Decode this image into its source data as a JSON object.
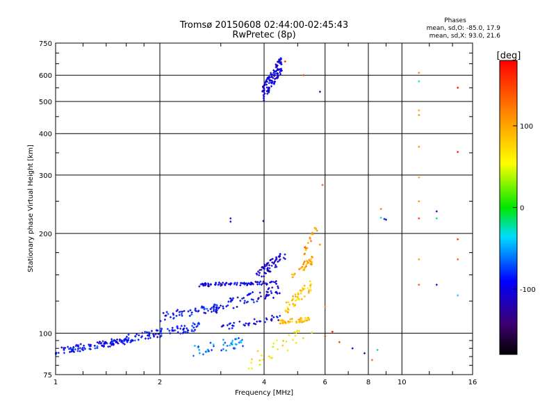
{
  "chart_data": {
    "type": "scatter",
    "title": "Tromsø 20150608 02:44:00-02:45:43",
    "subtitle": "RwPretec (8p)",
    "xlabel": "Frequency [MHz]",
    "ylabel": "Stationary phase Virtual Height [km]",
    "x_scale": "log",
    "y_scale": "log",
    "xlim": [
      1,
      16
    ],
    "ylim": [
      75,
      750
    ],
    "x_ticks": [
      1,
      2,
      4,
      6,
      8,
      10,
      16
    ],
    "x_tick_labels": [
      "1",
      "2",
      "4",
      "6",
      "8",
      "10",
      "16"
    ],
    "y_ticks": [
      75,
      100,
      200,
      300,
      400,
      500,
      600,
      750
    ],
    "y_tick_labels": [
      "75",
      "100",
      "200",
      "300",
      "400",
      "500",
      "600",
      "750"
    ],
    "x_grid": [
      2,
      4,
      6,
      8,
      10
    ],
    "y_grid": [
      100,
      200,
      300,
      400,
      500,
      600
    ],
    "grid": true,
    "stats_title": "Phases",
    "stats_lines": [
      "mean, sd,O: -85.0, 17.9",
      "mean, sd,X:  93.0, 21.6"
    ],
    "colorbar": {
      "label": "[deg]",
      "range": [
        -180,
        180
      ],
      "ticks": [
        100,
        0,
        -100
      ],
      "tick_labels": [
        "100",
        "0",
        "-100"
      ],
      "placement": "right"
    },
    "traces": [
      {
        "x0": 1.0,
        "x1": 1.6,
        "y0": 88,
        "y1": 95,
        "phase": -95,
        "n": 110,
        "spread": 0.025
      },
      {
        "x0": 1.6,
        "x1": 2.6,
        "y0": 96,
        "y1": 105,
        "phase": -90,
        "n": 90,
        "spread": 0.03
      },
      {
        "x0": 2.0,
        "x1": 3.0,
        "y0": 112,
        "y1": 120,
        "phase": -90,
        "n": 55,
        "spread": 0.03
      },
      {
        "x0": 2.6,
        "x1": 4.4,
        "y0": 140,
        "y1": 142,
        "phase": -100,
        "n": 80,
        "spread": 0.012
      },
      {
        "x0": 2.8,
        "x1": 4.5,
        "y0": 118,
        "y1": 135,
        "phase": -100,
        "n": 70,
        "spread": 0.04
      },
      {
        "x0": 3.0,
        "x1": 4.5,
        "y0": 104,
        "y1": 112,
        "phase": -100,
        "n": 40,
        "spread": 0.02
      },
      {
        "x0": 3.8,
        "x1": 4.6,
        "y0": 148,
        "y1": 172,
        "phase": -110,
        "n": 60,
        "spread": 0.04
      },
      {
        "x0": 4.4,
        "x1": 5.4,
        "y0": 108,
        "y1": 110,
        "phase": 90,
        "n": 45,
        "spread": 0.015
      },
      {
        "x0": 4.6,
        "x1": 5.5,
        "y0": 118,
        "y1": 140,
        "phase": 85,
        "n": 50,
        "spread": 0.04
      },
      {
        "x0": 4.8,
        "x1": 5.6,
        "y0": 150,
        "y1": 168,
        "phase": 100,
        "n": 35,
        "spread": 0.03
      },
      {
        "x0": 5.2,
        "x1": 5.7,
        "y0": 175,
        "y1": 208,
        "phase": 110,
        "n": 18,
        "spread": 0.03
      },
      {
        "x0": 2.5,
        "x1": 3.6,
        "y0": 88,
        "y1": 95,
        "phase": -60,
        "n": 40,
        "spread": 0.04
      },
      {
        "x0": 3.6,
        "x1": 5.5,
        "y0": 82,
        "y1": 100,
        "phase": 60,
        "n": 30,
        "spread": 0.06
      },
      {
        "x0": 3.95,
        "x1": 4.5,
        "y0": 520,
        "y1": 650,
        "phase": -105,
        "n": 120,
        "spread": 0.06
      }
    ],
    "points": [
      {
        "x": 3.2,
        "y": 222,
        "phase": -120
      },
      {
        "x": 3.2,
        "y": 217,
        "phase": -100
      },
      {
        "x": 3.98,
        "y": 218,
        "phase": -120
      },
      {
        "x": 5.9,
        "y": 280,
        "phase": 140
      },
      {
        "x": 5.2,
        "y": 600,
        "phase": 150
      },
      {
        "x": 5.8,
        "y": 535,
        "phase": -100
      },
      {
        "x": 4.6,
        "y": 660,
        "phase": 160
      },
      {
        "x": 8.7,
        "y": 237,
        "phase": 120
      },
      {
        "x": 8.7,
        "y": 223,
        "phase": -30
      },
      {
        "x": 8.9,
        "y": 221,
        "phase": -100
      },
      {
        "x": 9.0,
        "y": 220,
        "phase": -110
      },
      {
        "x": 11.2,
        "y": 610,
        "phase": 120
      },
      {
        "x": 11.2,
        "y": 575,
        "phase": -30
      },
      {
        "x": 11.2,
        "y": 470,
        "phase": 100
      },
      {
        "x": 11.2,
        "y": 455,
        "phase": 110
      },
      {
        "x": 11.2,
        "y": 365,
        "phase": 110
      },
      {
        "x": 11.2,
        "y": 295,
        "phase": 100
      },
      {
        "x": 11.2,
        "y": 250,
        "phase": 110
      },
      {
        "x": 11.2,
        "y": 222,
        "phase": 150
      },
      {
        "x": 11.2,
        "y": 167,
        "phase": 110
      },
      {
        "x": 11.2,
        "y": 140,
        "phase": 140
      },
      {
        "x": 12.6,
        "y": 233,
        "phase": -110
      },
      {
        "x": 12.6,
        "y": 222,
        "phase": -20
      },
      {
        "x": 12.6,
        "y": 140,
        "phase": -100
      },
      {
        "x": 14.5,
        "y": 550,
        "phase": 170
      },
      {
        "x": 14.5,
        "y": 352,
        "phase": 170
      },
      {
        "x": 14.5,
        "y": 192,
        "phase": 160
      },
      {
        "x": 14.5,
        "y": 167,
        "phase": 140
      },
      {
        "x": 14.5,
        "y": 130,
        "phase": -40
      },
      {
        "x": 6.3,
        "y": 101,
        "phase": 170
      },
      {
        "x": 6.0,
        "y": 98,
        "phase": 160
      },
      {
        "x": 6.6,
        "y": 94,
        "phase": 150
      },
      {
        "x": 7.2,
        "y": 90,
        "phase": -100
      },
      {
        "x": 7.8,
        "y": 87,
        "phase": -110
      },
      {
        "x": 8.2,
        "y": 83,
        "phase": 130
      },
      {
        "x": 8.5,
        "y": 89,
        "phase": -20
      },
      {
        "x": 5.8,
        "y": 185,
        "phase": 110
      },
      {
        "x": 6.0,
        "y": 120,
        "phase": 120
      }
    ]
  }
}
